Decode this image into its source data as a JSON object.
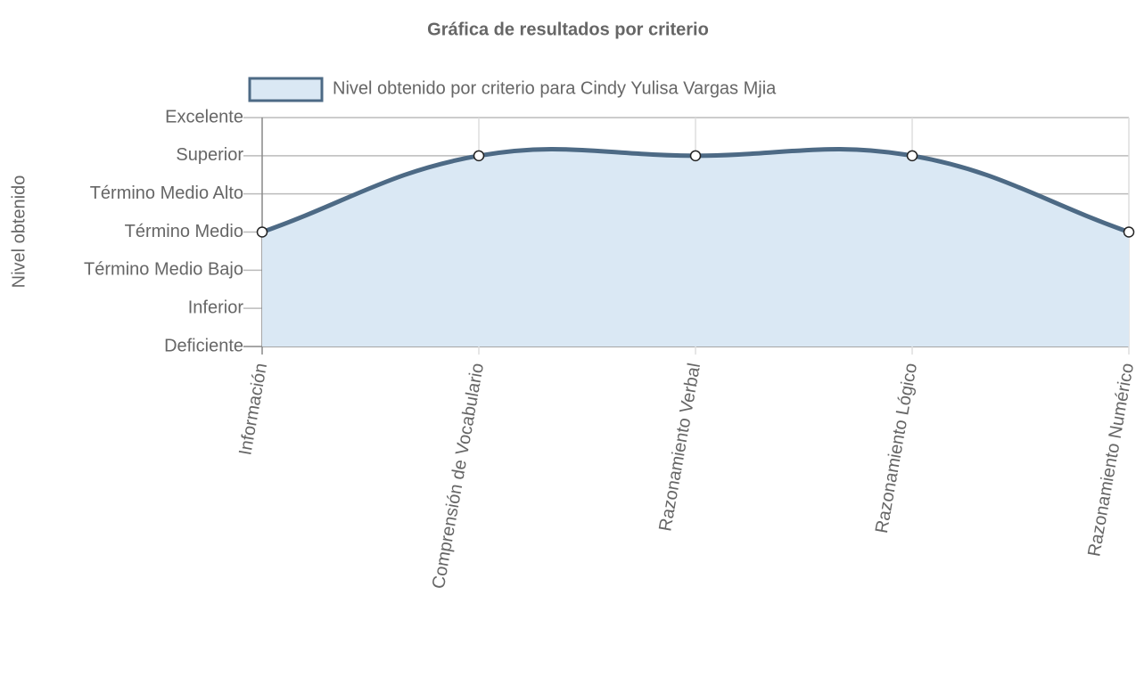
{
  "chart_data": {
    "type": "line",
    "title": "Gráfica de resultados por criterio",
    "y_label": "Nivel obtenido",
    "categories": [
      "Información",
      "Comprensión de Vocabulario",
      "Razonamiento Verbal",
      "Razonamiento Lógico",
      "Razonamiento Numérico"
    ],
    "series": [
      {
        "name": "Nivel obtenido por criterio para Cindy Yulisa Vargas Mjia",
        "color": "#4d6a85",
        "fill": "#dae8f4",
        "values": [
          3,
          5,
          5,
          5,
          3
        ]
      }
    ],
    "ylim": [
      0,
      6
    ],
    "yticks": [
      {
        "value": 0,
        "label": "Deficiente"
      },
      {
        "value": 1,
        "label": "Inferior"
      },
      {
        "value": 2,
        "label": "Término Medio Bajo"
      },
      {
        "value": 3,
        "label": "Término Medio"
      },
      {
        "value": 4,
        "label": "Término Medio Alto"
      },
      {
        "value": 5,
        "label": "Superior"
      },
      {
        "value": 6,
        "label": "Excelente"
      }
    ],
    "grid": true,
    "legend": "top"
  }
}
